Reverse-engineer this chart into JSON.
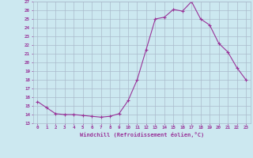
{
  "xlabel": "Windchill (Refroidissement éolien,°C)",
  "x": [
    0,
    1,
    2,
    3,
    4,
    5,
    6,
    7,
    8,
    9,
    10,
    11,
    12,
    13,
    14,
    15,
    16,
    17,
    18,
    19,
    20,
    21,
    22,
    23
  ],
  "y": [
    15.5,
    14.8,
    14.1,
    14.0,
    14.0,
    13.9,
    13.8,
    13.7,
    13.8,
    14.1,
    15.6,
    18.0,
    21.5,
    25.0,
    25.2,
    26.1,
    25.9,
    27.0,
    25.0,
    24.3,
    22.2,
    21.2,
    19.4,
    18.0
  ],
  "line_color": "#993399",
  "marker": "+",
  "bg_color": "#cce8f0",
  "grid_color": "#aabbcc",
  "tick_color": "#993399",
  "label_color": "#993399",
  "ylim": [
    13,
    27
  ],
  "xlim": [
    -0.5,
    23.5
  ],
  "yticks": [
    13,
    14,
    15,
    16,
    17,
    18,
    19,
    20,
    21,
    22,
    23,
    24,
    25,
    26,
    27
  ],
  "xticks": [
    0,
    1,
    2,
    3,
    4,
    5,
    6,
    7,
    8,
    9,
    10,
    11,
    12,
    13,
    14,
    15,
    16,
    17,
    18,
    19,
    20,
    21,
    22,
    23
  ]
}
